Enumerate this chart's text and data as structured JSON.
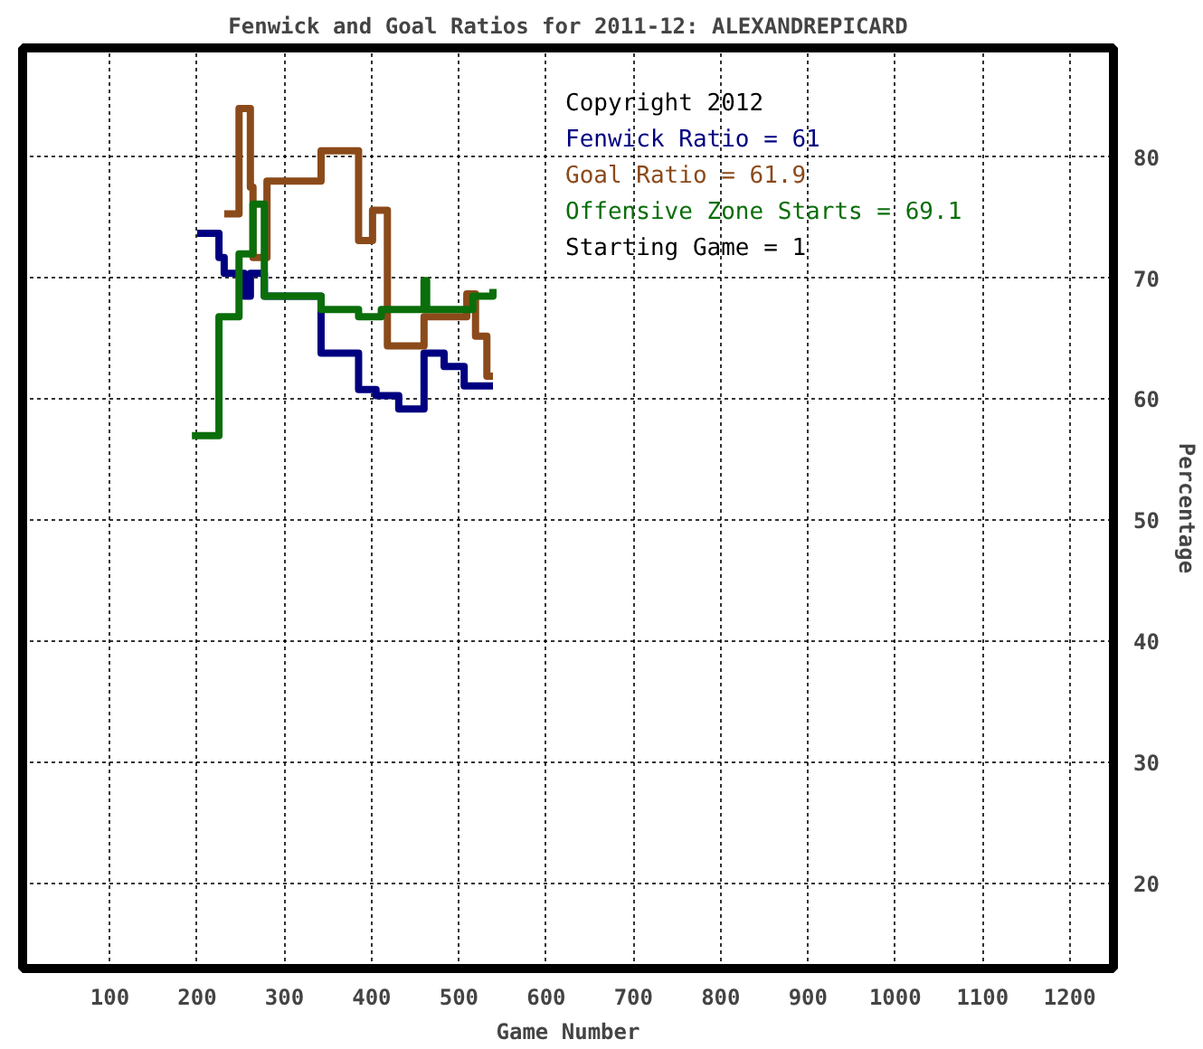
{
  "chart_data": {
    "type": "step",
    "title": "Fenwick and Goal Ratios for 2011-12: ALEXANDREPICARD",
    "xlabel": "Game Number",
    "ylabel": "Percentage",
    "xlim": [
      0,
      1250
    ],
    "xticks": [
      100,
      200,
      300,
      400,
      500,
      600,
      700,
      800,
      900,
      1000,
      1100,
      1200
    ],
    "ylim": [
      13,
      89
    ],
    "yticks": [
      20,
      30,
      40,
      50,
      60,
      70,
      80
    ],
    "grid": true,
    "legend": "top right",
    "annotations": [
      "Copyright 2012",
      "Starting Game = 1"
    ],
    "series": [
      {
        "name": "Fenwick Ratio = 61",
        "color": "#000080",
        "x": [
          200,
          225,
          231,
          254,
          261,
          277,
          342,
          385,
          405,
          431,
          460,
          483,
          506,
          539
        ],
        "values": [
          73.7,
          71.7,
          70.4,
          68.5,
          70.4,
          68.5,
          63.8,
          60.8,
          60.3,
          59.2,
          63.8,
          62.7,
          61.1,
          61.1
        ]
      },
      {
        "name": "Goal Ratio = 61.9",
        "color": "#8b4a1a",
        "x": [
          231,
          248,
          261,
          264,
          267,
          280,
          342,
          385,
          401,
          418,
          460,
          509,
          519,
          532,
          539
        ],
        "values": [
          75.3,
          84,
          77.5,
          71.7,
          71.7,
          78,
          80.5,
          73.1,
          75.6,
          64.4,
          66.8,
          68.7,
          65.2,
          61.9,
          61.9
        ]
      },
      {
        "name": "Offensive Zone Starts = 69.1",
        "color": "#0a6e0a",
        "x": [
          194,
          225,
          248,
          264,
          277,
          342,
          385,
          411,
          460,
          463,
          516,
          539
        ],
        "values": [
          57,
          66.8,
          72,
          76.1,
          68.5,
          67.4,
          66.8,
          67.4,
          69.8,
          67.4,
          68.5,
          69.1
        ]
      }
    ]
  }
}
